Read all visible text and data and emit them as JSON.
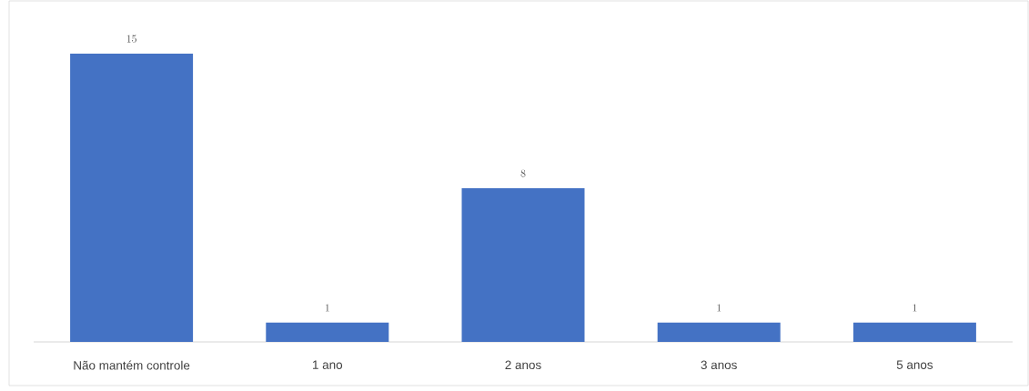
{
  "chart_data": {
    "type": "bar",
    "categories": [
      "Não mantém controle",
      "1 ano",
      "2 anos",
      "3 anos",
      "5 anos"
    ],
    "values": [
      15,
      1,
      8,
      1,
      1
    ],
    "color": "#4472c4",
    "data_labels": true
  }
}
